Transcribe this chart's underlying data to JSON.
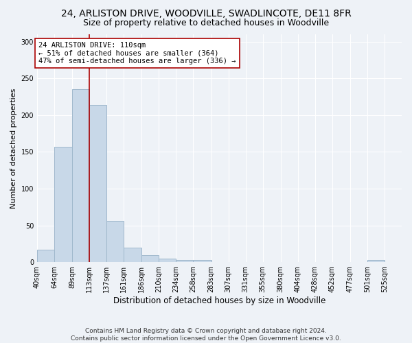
{
  "title1": "24, ARLISTON DRIVE, WOODVILLE, SWADLINCOTE, DE11 8FR",
  "title2": "Size of property relative to detached houses in Woodville",
  "xlabel": "Distribution of detached houses by size in Woodville",
  "ylabel": "Number of detached properties",
  "bar_values": [
    17,
    157,
    235,
    214,
    56,
    20,
    9,
    5,
    3,
    3,
    0,
    0,
    0,
    0,
    0,
    0,
    0,
    0,
    0,
    3,
    0
  ],
  "bin_edges": [
    40,
    64,
    89,
    113,
    137,
    161,
    186,
    210,
    234,
    258,
    283,
    307,
    331,
    355,
    380,
    404,
    428,
    452,
    477,
    501,
    525,
    549
  ],
  "tick_labels": [
    "40sqm",
    "64sqm",
    "89sqm",
    "113sqm",
    "137sqm",
    "161sqm",
    "186sqm",
    "210sqm",
    "234sqm",
    "258sqm",
    "283sqm",
    "307sqm",
    "331sqm",
    "355sqm",
    "380sqm",
    "404sqm",
    "428sqm",
    "452sqm",
    "477sqm",
    "501sqm",
    "525sqm"
  ],
  "bar_color": "#c8d8e8",
  "bar_edge_color": "#a0b8cc",
  "bar_linewidth": 0.7,
  "vline_x": 113,
  "vline_color": "#aa0000",
  "annotation_text": "24 ARLISTON DRIVE: 110sqm\n← 51% of detached houses are smaller (364)\n47% of semi-detached houses are larger (336) →",
  "annotation_box_color": "white",
  "annotation_box_edge_color": "#aa0000",
  "ylim": [
    0,
    310
  ],
  "yticks": [
    0,
    50,
    100,
    150,
    200,
    250,
    300
  ],
  "footnote": "Contains HM Land Registry data © Crown copyright and database right 2024.\nContains public sector information licensed under the Open Government Licence v3.0.",
  "background_color": "#eef2f7",
  "grid_color": "white",
  "title1_fontsize": 10,
  "title2_fontsize": 9,
  "xlabel_fontsize": 8.5,
  "ylabel_fontsize": 8,
  "tick_fontsize": 7,
  "annotation_fontsize": 7.5,
  "footnote_fontsize": 6.5
}
